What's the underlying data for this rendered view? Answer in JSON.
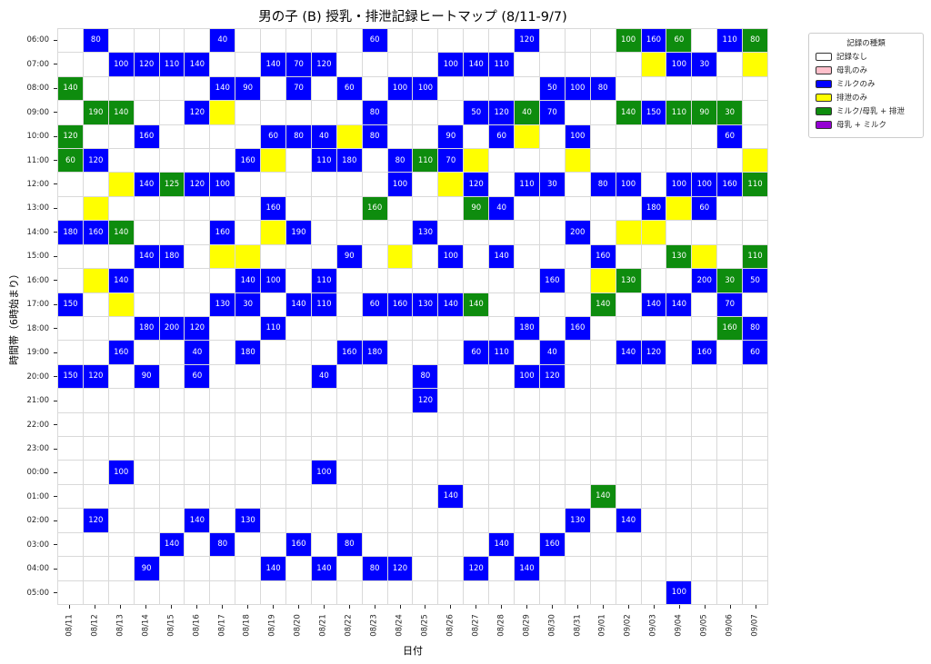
{
  "chart_data": {
    "type": "heatmap",
    "title": "男の子 (B) 授乳・排泄記録ヒートマップ (8/11-9/7)",
    "xlabel": "日付",
    "ylabel": "時間帯（6時始まり）",
    "x_categories": [
      "08/11",
      "08/12",
      "08/13",
      "08/14",
      "08/15",
      "08/16",
      "08/17",
      "08/18",
      "08/19",
      "08/20",
      "08/21",
      "08/22",
      "08/23",
      "08/24",
      "08/25",
      "08/26",
      "08/27",
      "08/28",
      "08/29",
      "08/30",
      "08/31",
      "09/01",
      "09/02",
      "09/03",
      "09/04",
      "09/05",
      "09/06",
      "09/07"
    ],
    "y_categories": [
      "06:00",
      "07:00",
      "08:00",
      "09:00",
      "10:00",
      "11:00",
      "12:00",
      "13:00",
      "14:00",
      "15:00",
      "16:00",
      "17:00",
      "18:00",
      "19:00",
      "20:00",
      "21:00",
      "22:00",
      "23:00",
      "00:00",
      "01:00",
      "02:00",
      "03:00",
      "04:00",
      "05:00"
    ],
    "cell_encoding": "per y_category, 28 tokens matching x_categories: '' = 記録なし, 'Y' = 排泄のみ, number = ミルクのみ (ml, blue), number+'G' = ミルク/母乳 + 排泄 (ml, green)",
    "rows": {
      "06:00": [
        "",
        "80",
        "",
        "",
        "",
        "",
        "40",
        "",
        "",
        "",
        "",
        "",
        "60",
        "",
        "",
        "",
        "",
        "",
        "120",
        "",
        "",
        "",
        "100G",
        "160",
        "60G",
        "",
        "110",
        "80G"
      ],
      "07:00": [
        "",
        "",
        "100",
        "120",
        "110",
        "140",
        "",
        "",
        "140",
        "70",
        "120",
        "",
        "",
        "",
        "",
        "100",
        "140",
        "110",
        "",
        "",
        "",
        "",
        "",
        "Y",
        "100",
        "30",
        "",
        "Y"
      ],
      "08:00": [
        "140G",
        "",
        "",
        "",
        "",
        "",
        "140",
        "90",
        "",
        "70",
        "",
        "60",
        "",
        "100",
        "100",
        "",
        "",
        "",
        "",
        "50",
        "100",
        "80",
        "",
        "",
        "",
        "",
        "",
        ""
      ],
      "09:00": [
        "",
        "190G",
        "140G",
        "",
        "",
        "120",
        "Y",
        "",
        "",
        "",
        "",
        "",
        "80",
        "",
        "",
        "",
        "50",
        "120",
        "40G",
        "70",
        "",
        "",
        "140G",
        "150",
        "110G",
        "90G",
        "30G",
        ""
      ],
      "10:00": [
        "120G",
        "",
        "",
        "160",
        "",
        "",
        "",
        "",
        "60",
        "80",
        "40",
        "Y",
        "80",
        "",
        "",
        "90",
        "",
        "60",
        "Y",
        "",
        "100",
        "",
        "",
        "",
        "",
        "",
        "60",
        ""
      ],
      "11:00": [
        "60G",
        "120",
        "",
        "",
        "",
        "",
        "",
        "160",
        "Y",
        "",
        "110",
        "180",
        "",
        "80",
        "110G",
        "70",
        "Y",
        "",
        "",
        "",
        "Y",
        "",
        "",
        "",
        "",
        "",
        "",
        "Y"
      ],
      "12:00": [
        "",
        "",
        "Y",
        "140",
        "125G",
        "120",
        "100",
        "",
        "",
        "",
        "",
        "",
        "",
        "100",
        "",
        "Y",
        "120",
        "",
        "110",
        "30",
        "",
        "80",
        "100",
        "",
        "100",
        "100",
        "160",
        "110G"
      ],
      "13:00": [
        "",
        "Y",
        "",
        "",
        "",
        "",
        "",
        "",
        "160",
        "",
        "",
        "",
        "160G",
        "",
        "",
        "",
        "90G",
        "40",
        "",
        "",
        "",
        "",
        "",
        "180",
        "Y",
        "60",
        "",
        ""
      ],
      "14:00": [
        "180",
        "160",
        "140G",
        "",
        "",
        "",
        "160",
        "",
        "Y",
        "190",
        "",
        "",
        "",
        "",
        "130",
        "",
        "",
        "",
        "",
        "",
        "200",
        "",
        "Y",
        "Y",
        "",
        "",
        "",
        ""
      ],
      "15:00": [
        "",
        "",
        "",
        "140",
        "180",
        "",
        "Y",
        "Y",
        "",
        "",
        "",
        "90",
        "",
        "Y",
        "",
        "100",
        "",
        "140",
        "",
        "",
        "",
        "160",
        "",
        "",
        "130G",
        "Y",
        "",
        "110G"
      ],
      "16:00": [
        "",
        "Y",
        "140",
        "",
        "",
        "",
        "",
        "140",
        "100",
        "",
        "110",
        "",
        "",
        "",
        "",
        "",
        "",
        "",
        "",
        "160",
        "",
        "Y",
        "130G",
        "",
        "",
        "200",
        "30G",
        "50"
      ],
      "17:00": [
        "150",
        "",
        "Y",
        "",
        "",
        "",
        "130",
        "30",
        "",
        "140",
        "110",
        "",
        "60",
        "160",
        "130",
        "140",
        "140G",
        "",
        "",
        "",
        "",
        "140G",
        "",
        "140",
        "140",
        "",
        "70",
        ""
      ],
      "18:00": [
        "",
        "",
        "",
        "180",
        "200",
        "120",
        "",
        "",
        "110",
        "",
        "",
        "",
        "",
        "",
        "",
        "",
        "",
        "",
        "180",
        "",
        "160",
        "",
        "",
        "",
        "",
        "",
        "160G",
        "80"
      ],
      "19:00": [
        "",
        "",
        "160",
        "",
        "",
        "40",
        "",
        "180",
        "",
        "",
        "",
        "160",
        "180",
        "",
        "",
        "",
        "60",
        "110",
        "",
        "40",
        "",
        "",
        "140",
        "120",
        "",
        "160",
        "",
        "60"
      ],
      "20:00": [
        "150",
        "120",
        "",
        "90",
        "",
        "60",
        "",
        "",
        "",
        "",
        "40",
        "",
        "",
        "",
        "80",
        "",
        "",
        "",
        "100",
        "120",
        "",
        "",
        "",
        "",
        "",
        "",
        "",
        ""
      ],
      "21:00": [
        "",
        "",
        "",
        "",
        "",
        "",
        "",
        "",
        "",
        "",
        "",
        "",
        "",
        "",
        "120",
        "",
        "",
        "",
        "",
        "",
        "",
        "",
        "",
        "",
        "",
        "",
        "",
        ""
      ],
      "22:00": [
        "",
        "",
        "",
        "",
        "",
        "",
        "",
        "",
        "",
        "",
        "",
        "",
        "",
        "",
        "",
        "",
        "",
        "",
        "",
        "",
        "",
        "",
        "",
        "",
        "",
        "",
        "",
        ""
      ],
      "23:00": [
        "",
        "",
        "",
        "",
        "",
        "",
        "",
        "",
        "",
        "",
        "",
        "",
        "",
        "",
        "",
        "",
        "",
        "",
        "",
        "",
        "",
        "",
        "",
        "",
        "",
        "",
        "",
        ""
      ],
      "00:00": [
        "",
        "",
        "100",
        "",
        "",
        "",
        "",
        "",
        "",
        "",
        "100",
        "",
        "",
        "",
        "",
        "",
        "",
        "",
        "",
        "",
        "",
        "",
        "",
        "",
        "",
        "",
        "",
        ""
      ],
      "01:00": [
        "",
        "",
        "",
        "",
        "",
        "",
        "",
        "",
        "",
        "",
        "",
        "",
        "",
        "",
        "",
        "140",
        "",
        "",
        "",
        "",
        "",
        "140G",
        "",
        "",
        "",
        "",
        "",
        ""
      ],
      "02:00": [
        "",
        "120",
        "",
        "",
        "",
        "140",
        "",
        "130",
        "",
        "",
        "",
        "",
        "",
        "",
        "",
        "",
        "",
        "",
        "",
        "",
        "130",
        "",
        "140",
        "",
        "",
        "",
        "",
        ""
      ],
      "03:00": [
        "",
        "",
        "",
        "",
        "140",
        "",
        "80",
        "",
        "",
        "160",
        "",
        "80",
        "",
        "",
        "",
        "",
        "",
        "140",
        "",
        "160",
        "",
        "",
        "",
        "",
        "",
        "",
        "",
        ""
      ],
      "04:00": [
        "",
        "",
        "",
        "90",
        "",
        "",
        "",
        "",
        "140",
        "",
        "140",
        "",
        "80",
        "120",
        "",
        "",
        "120",
        "",
        "140",
        "",
        "",
        "",
        "",
        "",
        "",
        "",
        "",
        ""
      ],
      "05:00": [
        "",
        "",
        "",
        "",
        "",
        "",
        "",
        "",
        "",
        "",
        "",
        "",
        "",
        "",
        "",
        "",
        "",
        "",
        "",
        "",
        "",
        "",
        "",
        "",
        "100",
        "",
        "",
        ""
      ]
    },
    "category_colors": {
      "none": "#ffffff",
      "breast_only": "#ffc0cb",
      "milk_only": "#0000ff",
      "excretion_only": "#ffff00",
      "milk_or_breast_plus_excretion": "#0e8c0e",
      "breast_plus_milk": "#9400d3"
    },
    "legend": {
      "title": "記録の種類",
      "entries": [
        {
          "label": "記録なし",
          "color": "#ffffff"
        },
        {
          "label": "母乳のみ",
          "color": "#ffc0cb"
        },
        {
          "label": "ミルクのみ",
          "color": "#0000ff"
        },
        {
          "label": "排泄のみ",
          "color": "#ffff00"
        },
        {
          "label": "ミルク/母乳 + 排泄",
          "color": "#0e8c0e"
        },
        {
          "label": "母乳 + ミルク",
          "color": "#9400d3"
        }
      ],
      "position": "upper right"
    },
    "grid": true,
    "gridline_color": "#d9d9d9",
    "x_tick_rotation": 90
  }
}
